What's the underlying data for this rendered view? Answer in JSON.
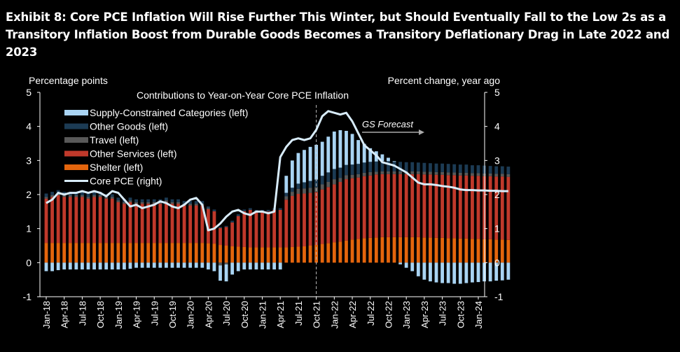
{
  "exhibit_title": "Exhibit 8: Core PCE Inflation Will Rise Further This Winter, but Should Eventually Fall to the Low 2s as a Transitory Inflation Boost from Durable Goods Becomes a Transitory Deflationary Drag in Late 2022 and 2023",
  "colors": {
    "background": "#000000",
    "supply": "#a9d4f3",
    "other_goods": "#1c3b54",
    "travel": "#595959",
    "other_services": "#c0392b",
    "shelter": "#e4650d",
    "core_pce": "#d8ecfa"
  },
  "chart_data": {
    "type": "bar",
    "stacked": true,
    "title": "Contributions to Year-on-Year  Core PCE Inflation",
    "ylabel_left": "Percentage points",
    "ylabel_right": "Percent change, year ago",
    "ylim": [
      -1,
      5
    ],
    "yticks": [
      -1,
      0,
      1,
      2,
      3,
      4,
      5
    ],
    "grid": false,
    "legend_position": "top-left",
    "forecast_label": "GS Forecast",
    "forecast_start": "Oct-21",
    "x_tick_labels": [
      "Jan-18",
      "Apr-18",
      "Jul-18",
      "Oct-18",
      "Jan-19",
      "Apr-19",
      "Jul-19",
      "Oct-19",
      "Jan-20",
      "Apr-20",
      "Jul-20",
      "Oct-20",
      "Jan-21",
      "Apr-21",
      "Jul-21",
      "Oct-21",
      "Jan-22",
      "Apr-22",
      "Jul-22",
      "Oct-22",
      "Jan-23",
      "Apr-23",
      "Jul-23",
      "Oct-23",
      "Jan-24"
    ],
    "x_start": "Jan-18",
    "x_end": "Jan-24",
    "series": [
      {
        "name": "Supply-Constrained Categories (left)",
        "key": "supply",
        "values": [
          -0.25,
          -0.25,
          -0.22,
          -0.2,
          -0.2,
          -0.2,
          -0.2,
          -0.2,
          -0.2,
          -0.2,
          -0.2,
          -0.2,
          -0.2,
          -0.2,
          -0.18,
          -0.15,
          -0.15,
          -0.15,
          -0.15,
          -0.15,
          -0.15,
          -0.15,
          -0.15,
          -0.15,
          -0.15,
          -0.15,
          -0.15,
          -0.2,
          -0.25,
          -0.45,
          -0.5,
          -0.35,
          -0.25,
          -0.2,
          -0.2,
          -0.2,
          -0.2,
          -0.2,
          -0.2,
          -0.2,
          0.5,
          0.8,
          0.9,
          0.95,
          1.0,
          1.02,
          1.0,
          1.05,
          1.1,
          1.1,
          1.0,
          0.9,
          0.7,
          0.55,
          0.4,
          0.3,
          0.2,
          0.1,
          0.02,
          -0.05,
          -0.15,
          -0.25,
          -0.4,
          -0.5,
          -0.55,
          -0.58,
          -0.6,
          -0.6,
          -0.62,
          -0.62,
          -0.6,
          -0.58,
          -0.57,
          -0.55,
          -0.55,
          -0.53,
          -0.52,
          -0.5
        ]
      },
      {
        "name": "Other Goods  (left)",
        "key": "other_goods",
        "values": [
          0.1,
          0.1,
          0.1,
          0.1,
          0.1,
          0.1,
          0.1,
          0.1,
          0.1,
          0.1,
          0.08,
          0.08,
          0.08,
          0.08,
          0.08,
          0.08,
          0.08,
          0.08,
          0.08,
          0.08,
          0.08,
          0.08,
          0.08,
          0.08,
          0.08,
          0.08,
          0.08,
          0.05,
          0.05,
          0.03,
          0.03,
          0.05,
          0.05,
          0.05,
          0.05,
          0.05,
          0.05,
          0.05,
          0.05,
          0.05,
          0.1,
          0.12,
          0.15,
          0.18,
          0.2,
          0.22,
          0.25,
          0.28,
          0.3,
          0.3,
          0.3,
          0.3,
          0.3,
          0.3,
          0.3,
          0.3,
          0.3,
          0.3,
          0.28,
          0.28,
          0.27,
          0.27,
          0.26,
          0.26,
          0.25,
          0.25,
          0.25,
          0.25,
          0.24,
          0.24,
          0.24,
          0.23,
          0.23,
          0.23,
          0.22,
          0.22,
          0.22,
          0.22
        ]
      },
      {
        "name": "Travel (left)",
        "key": "travel",
        "values": [
          0.05,
          0.05,
          0.05,
          0.05,
          0.05,
          0.05,
          0.05,
          0.05,
          0.05,
          0.05,
          0.05,
          0.05,
          0.05,
          0.05,
          0.05,
          0.05,
          0.05,
          0.05,
          0.05,
          0.05,
          0.05,
          0.05,
          0.05,
          0.05,
          0.05,
          0.05,
          0.05,
          0.03,
          0.0,
          -0.08,
          -0.05,
          0.0,
          0.0,
          0.0,
          0.0,
          0.0,
          0.0,
          0.0,
          0.0,
          0.0,
          0.1,
          0.12,
          0.15,
          0.15,
          0.15,
          0.15,
          0.15,
          0.15,
          0.15,
          0.12,
          0.12,
          0.1,
          0.1,
          0.1,
          0.1,
          0.08,
          0.08,
          0.08,
          0.08,
          0.08,
          0.08,
          0.08,
          0.08,
          0.08,
          0.08,
          0.08,
          0.08,
          0.08,
          0.08,
          0.08,
          0.08,
          0.08,
          0.08,
          0.08,
          0.08,
          0.08,
          0.08,
          0.08
        ]
      },
      {
        "name": "Other Services  (left)",
        "key": "other_services",
        "values": [
          1.3,
          1.35,
          1.4,
          1.35,
          1.35,
          1.35,
          1.35,
          1.3,
          1.35,
          1.35,
          1.3,
          1.3,
          1.2,
          1.15,
          1.2,
          1.15,
          1.15,
          1.15,
          1.15,
          1.15,
          1.2,
          1.15,
          1.15,
          1.1,
          1.1,
          1.1,
          1.1,
          1.0,
          0.95,
          0.5,
          0.55,
          0.7,
          0.9,
          1.05,
          1.1,
          1.05,
          1.05,
          1.05,
          1.1,
          1.1,
          1.4,
          1.5,
          1.55,
          1.55,
          1.55,
          1.55,
          1.6,
          1.65,
          1.7,
          1.75,
          1.8,
          1.8,
          1.8,
          1.82,
          1.83,
          1.85,
          1.85,
          1.85,
          1.85,
          1.85,
          1.85,
          1.85,
          1.85,
          1.85,
          1.85,
          1.85,
          1.85,
          1.85,
          1.85,
          1.85,
          1.85,
          1.85,
          1.85,
          1.85,
          1.85,
          1.85,
          1.85,
          1.85
        ]
      },
      {
        "name": "Shelter (left)",
        "key": "shelter",
        "values": [
          0.58,
          0.58,
          0.58,
          0.58,
          0.58,
          0.58,
          0.58,
          0.58,
          0.58,
          0.58,
          0.58,
          0.58,
          0.58,
          0.58,
          0.58,
          0.58,
          0.58,
          0.58,
          0.58,
          0.58,
          0.58,
          0.58,
          0.58,
          0.58,
          0.58,
          0.58,
          0.58,
          0.57,
          0.56,
          0.52,
          0.5,
          0.48,
          0.47,
          0.46,
          0.45,
          0.45,
          0.45,
          0.45,
          0.45,
          0.45,
          0.45,
          0.46,
          0.47,
          0.48,
          0.5,
          0.52,
          0.55,
          0.57,
          0.6,
          0.62,
          0.65,
          0.68,
          0.7,
          0.72,
          0.73,
          0.74,
          0.75,
          0.75,
          0.75,
          0.75,
          0.75,
          0.75,
          0.75,
          0.74,
          0.74,
          0.73,
          0.73,
          0.72,
          0.72,
          0.71,
          0.71,
          0.7,
          0.7,
          0.69,
          0.69,
          0.68,
          0.68,
          0.67
        ]
      },
      {
        "name": "Core PCE (right)",
        "key": "core_pce",
        "type": "line",
        "values": [
          1.75,
          1.85,
          2.05,
          2.0,
          2.05,
          2.05,
          2.1,
          2.05,
          2.1,
          2.05,
          1.95,
          2.1,
          2.05,
          1.85,
          1.65,
          1.7,
          1.6,
          1.65,
          1.7,
          1.8,
          1.75,
          1.65,
          1.6,
          1.7,
          1.85,
          1.9,
          1.7,
          0.95,
          1.0,
          1.15,
          1.35,
          1.5,
          1.55,
          1.45,
          1.4,
          1.5,
          1.5,
          1.45,
          1.5,
          3.1,
          3.4,
          3.6,
          3.65,
          3.6,
          3.65,
          3.9,
          4.3,
          4.45,
          4.4,
          4.35,
          4.4,
          4.15,
          3.8,
          3.45,
          3.3,
          3.15,
          2.95,
          2.9,
          2.85,
          2.75,
          2.65,
          2.5,
          2.35,
          2.3,
          2.3,
          2.28,
          2.25,
          2.23,
          2.2,
          2.15,
          2.13,
          2.13,
          2.12,
          2.12,
          2.11,
          2.11,
          2.1,
          2.1
        ]
      }
    ]
  }
}
